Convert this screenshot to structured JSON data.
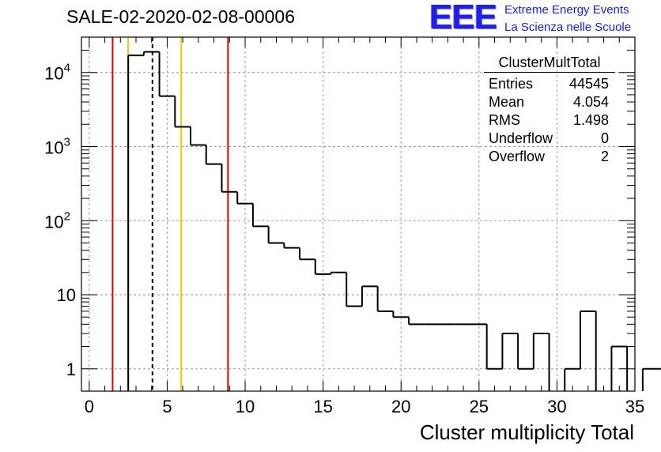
{
  "page": {
    "title": "SALE-02-2020-02-08-00006",
    "logo": {
      "mark": "EEE",
      "line1": "Extreme Energy Events",
      "line2": "La Scienza nelle Scuole"
    }
  },
  "stats_box": {
    "title": "ClusterMultTotal",
    "rows": [
      {
        "label": "Entries",
        "value": "44545"
      },
      {
        "label": "Mean",
        "value": "4.054"
      },
      {
        "label": "RMS",
        "value": "1.498"
      },
      {
        "label": "Underflow",
        "value": "0"
      },
      {
        "label": "Overflow",
        "value": "2"
      }
    ]
  },
  "chart_data": {
    "type": "histogram",
    "xlabel": "Cluster multiplicity Total",
    "ylabel": "",
    "xlim": [
      -0.5,
      35
    ],
    "ylim": [
      0.5,
      30000
    ],
    "yscale": "log",
    "grid": true,
    "bin_width": 1,
    "bin_edges_start": 2.5,
    "counts": [
      17000,
      19000,
      4800,
      1850,
      1050,
      580,
      245,
      170,
      84,
      50,
      43,
      30,
      19,
      20,
      7,
      13,
      6,
      5,
      4,
      4,
      4,
      4,
      4,
      1,
      3,
      1,
      3,
      0,
      1,
      6,
      0,
      2,
      0,
      1,
      1,
      1
    ],
    "x_ticks": [
      0,
      5,
      10,
      15,
      20,
      25,
      30,
      35
    ],
    "y_ticks": [
      {
        "value": 1,
        "label": "1"
      },
      {
        "value": 10,
        "label": "10"
      },
      {
        "value": 100,
        "base": "10",
        "exp": "2"
      },
      {
        "value": 1000,
        "base": "10",
        "exp": "3"
      },
      {
        "value": 10000,
        "base": "10",
        "exp": "4"
      }
    ],
    "vertical_lines": [
      {
        "x": 1.5,
        "color": "#e00000",
        "style": "solid"
      },
      {
        "x": 2.5,
        "color": "#f5c400",
        "style": "solid"
      },
      {
        "x": 4.054,
        "color": "#000000",
        "style": "dashed"
      },
      {
        "x": 5.9,
        "color": "#f5c400",
        "style": "solid"
      },
      {
        "x": 8.9,
        "color": "#e00000",
        "style": "solid"
      }
    ]
  }
}
